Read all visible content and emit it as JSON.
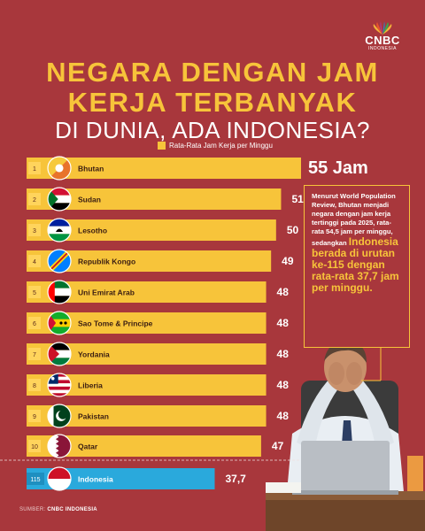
{
  "brand": {
    "name": "CNBC",
    "sub": "INDONESIA"
  },
  "title": {
    "line1": "NEGARA DENGAN JAM",
    "line2": "KERJA TERBANYAK",
    "line3": "DI DUNIA, ADA INDONESIA?"
  },
  "legend": {
    "label": "Rata-Rata Jam Kerja per Minggu"
  },
  "callout": {
    "text": "Menurut World Population Review, Bhutan menjadi negara dengan jam kerja tertinggi pada 2025, rata-rata 54,5 jam per minggu, sedangkan",
    "highlight": "Indonesia berada di urutan ke-115 dengan rata-rata 37,7 jam per minggu."
  },
  "source": {
    "label": "SUMBER:",
    "name": "CNBC INDONESIA"
  },
  "colors": {
    "background": "#a8373c",
    "bar": "#f7c43a",
    "indonesia_bar": "#2aa9dc",
    "accent": "#f7c43a"
  },
  "chart_data": {
    "type": "bar",
    "orientation": "horizontal",
    "series_name": "Rata-Rata Jam Kerja per Minggu",
    "rows": [
      {
        "rank": "1",
        "country": "Bhutan",
        "value": 55,
        "label": "55 Jam",
        "flag": "bhutan-flag"
      },
      {
        "rank": "2",
        "country": "Sudan",
        "value": 51,
        "label": "51",
        "flag": "sudan-flag"
      },
      {
        "rank": "3",
        "country": "Lesotho",
        "value": 50,
        "label": "50",
        "flag": "lesotho-flag"
      },
      {
        "rank": "4",
        "country": "Republik Kongo",
        "value": 49,
        "label": "49",
        "flag": "congo-flag"
      },
      {
        "rank": "5",
        "country": "Uni Emirat Arab",
        "value": 48,
        "label": "48",
        "flag": "uae-flag"
      },
      {
        "rank": "6",
        "country": "Sao Tome & Principe",
        "value": 48,
        "label": "48",
        "flag": "sao-tome-flag"
      },
      {
        "rank": "7",
        "country": "Yordania",
        "value": 48,
        "label": "48",
        "flag": "jordan-flag"
      },
      {
        "rank": "8",
        "country": "Liberia",
        "value": 48,
        "label": "48",
        "flag": "liberia-flag"
      },
      {
        "rank": "9",
        "country": "Pakistan",
        "value": 48,
        "label": "48",
        "flag": "pakistan-flag"
      },
      {
        "rank": "10",
        "country": "Qatar",
        "value": 47,
        "label": "47",
        "flag": "qatar-flag"
      },
      {
        "rank": "115",
        "country": "Indonesia",
        "value": 37.7,
        "label": "37,7",
        "flag": "indonesia-flag"
      }
    ]
  }
}
